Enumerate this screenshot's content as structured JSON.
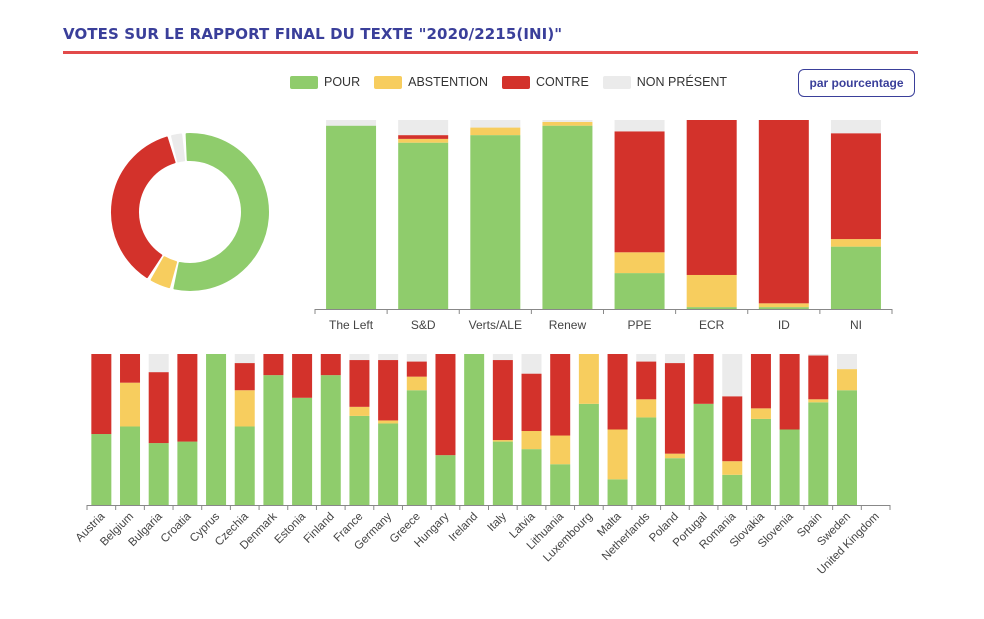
{
  "title": "VOTES SUR LE RAPPORT FINAL DU TEXTE \"2020/2215(INI)\"",
  "percentage_button": "par pourcentage",
  "colors": {
    "pour": "#8fcc6c",
    "abstention": "#f7cd5e",
    "contre": "#d3322b",
    "absent": "#ebebeb",
    "accent": "#3a3f9a",
    "rule": "#e24a4a"
  },
  "legend": [
    {
      "key": "pour",
      "label": "POUR"
    },
    {
      "key": "abstention",
      "label": "ABSTENTION"
    },
    {
      "key": "contre",
      "label": "CONTRE"
    },
    {
      "key": "absent",
      "label": "NON PRÉSENT"
    }
  ],
  "chart_data": [
    {
      "type": "pie",
      "variant": "donut",
      "labels": [
        "POUR",
        "ABSTENTION",
        "CONTRE",
        "NON PRÉSENT"
      ],
      "values": [
        55,
        5,
        37,
        3
      ]
    },
    {
      "type": "bar",
      "stacked": true,
      "categories": [
        "The Left",
        "S&D",
        "Verts/ALE",
        "Renew",
        "PPE",
        "ECR",
        "ID",
        "NI"
      ],
      "series": [
        {
          "name": "POUR",
          "values": [
            97,
            88,
            92,
            97,
            19,
            1,
            1,
            33
          ]
        },
        {
          "name": "ABSTENTION",
          "values": [
            0,
            2,
            4,
            2,
            11,
            17,
            2,
            4
          ]
        },
        {
          "name": "CONTRE",
          "values": [
            0,
            2,
            0,
            0,
            64,
            82,
            97,
            56
          ]
        },
        {
          "name": "NON PRÉSENT",
          "values": [
            3,
            8,
            4,
            1,
            6,
            0,
            0,
            7
          ]
        }
      ],
      "ylim": [
        0,
        100
      ]
    },
    {
      "type": "bar",
      "stacked": true,
      "categories": [
        "Austria",
        "Belgium",
        "Bulgaria",
        "Croatia",
        "Cyprus",
        "Czechia",
        "Denmark",
        "Estonia",
        "Finland",
        "France",
        "Germany",
        "Greece",
        "Hungary",
        "Ireland",
        "Italy",
        "Latvia",
        "Lithuania",
        "Luxembourg",
        "Malta",
        "Netherlands",
        "Poland",
        "Portugal",
        "Romania",
        "Slovakia",
        "Slovenia",
        "Spain",
        "Sweden",
        "United Kingdom"
      ],
      "series": [
        {
          "name": "POUR",
          "values": [
            47,
            52,
            41,
            42,
            100,
            52,
            86,
            71,
            86,
            59,
            54,
            76,
            33,
            100,
            42,
            37,
            27,
            67,
            17,
            58,
            31,
            67,
            20,
            57,
            50,
            68,
            76,
            0
          ]
        },
        {
          "name": "ABSTENTION",
          "values": [
            0,
            29,
            0,
            0,
            0,
            24,
            0,
            0,
            0,
            6,
            2,
            9,
            0,
            0,
            1,
            12,
            19,
            33,
            33,
            12,
            3,
            0,
            9,
            7,
            0,
            2,
            14,
            0
          ]
        },
        {
          "name": "CONTRE",
          "values": [
            53,
            19,
            47,
            58,
            0,
            18,
            14,
            29,
            14,
            31,
            40,
            10,
            67,
            0,
            53,
            38,
            54,
            0,
            50,
            25,
            60,
            33,
            43,
            36,
            50,
            29,
            0,
            0
          ]
        },
        {
          "name": "NON PRÉSENT",
          "values": [
            0,
            0,
            12,
            0,
            0,
            6,
            0,
            0,
            0,
            4,
            4,
            5,
            0,
            0,
            4,
            13,
            0,
            0,
            0,
            5,
            6,
            0,
            28,
            0,
            0,
            1,
            10,
            0
          ]
        }
      ],
      "ylim": [
        0,
        100
      ]
    }
  ]
}
